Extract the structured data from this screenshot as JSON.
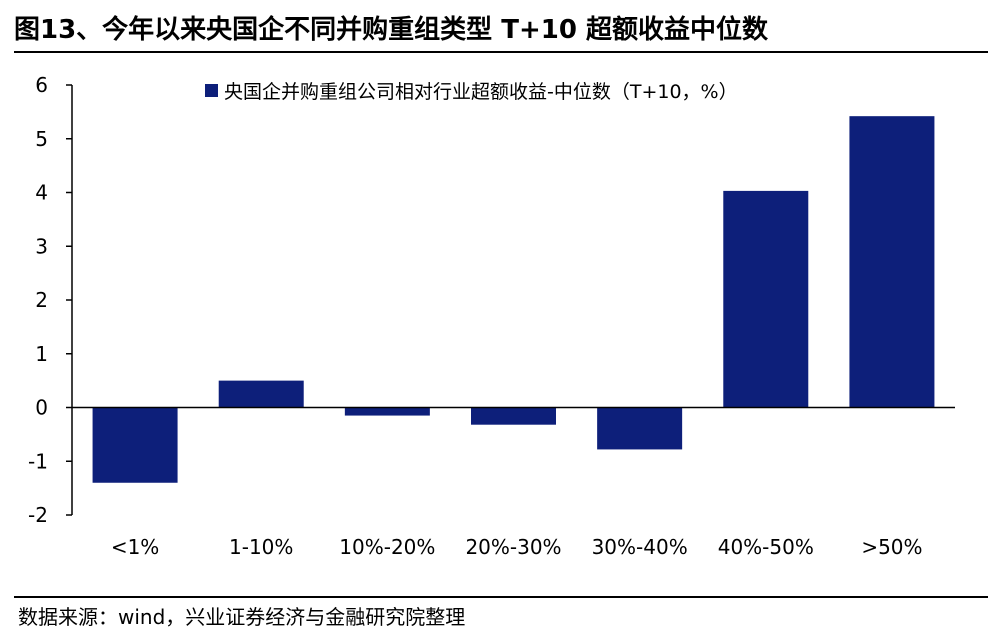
{
  "figure": {
    "title": "图13、今年以来央国企不同并购重组类型 T+10 超额收益中位数",
    "source": "数据来源：wind，兴业证券经济与金融研究院整理"
  },
  "chart_data": {
    "type": "bar",
    "title": "",
    "xlabel": "",
    "ylabel": "",
    "categories": [
      "<1%",
      "1-10%",
      "10%-20%",
      "20%-30%",
      "30%-40%",
      "40%-50%",
      ">50%"
    ],
    "series": [
      {
        "name": "央国企并购重组公司相对行业超额收益-中位数（T+10，%）",
        "values": [
          -1.4,
          0.5,
          -0.15,
          -0.32,
          -0.78,
          4.03,
          5.42
        ],
        "color": "#0d1f7a"
      }
    ],
    "ylim": [
      -2,
      6
    ],
    "yticks": [
      -2,
      -1,
      0,
      1,
      2,
      3,
      4,
      5,
      6
    ],
    "grid": false,
    "legend_position": "top"
  }
}
